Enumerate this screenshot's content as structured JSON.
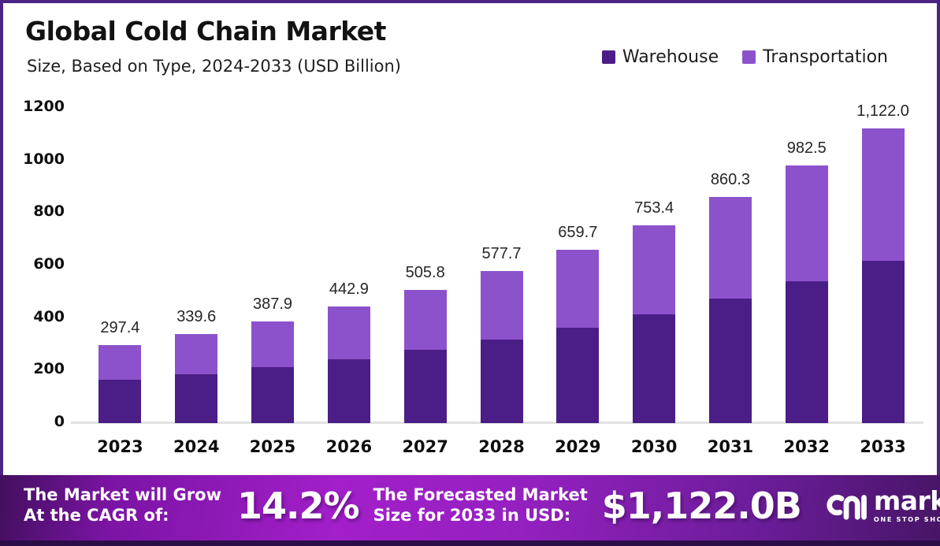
{
  "chart_data": {
    "type": "bar",
    "stacked": true,
    "title": "Global Cold Chain Market",
    "subtitle": "Size, Based on Type, 2024-2033 (USD Billion)",
    "categories": [
      "2023",
      "2024",
      "2025",
      "2026",
      "2027",
      "2028",
      "2029",
      "2030",
      "2031",
      "2032",
      "2033"
    ],
    "series": [
      {
        "name": "Warehouse",
        "color": "#4a1d87",
        "values": [
          163.6,
          186.8,
          213.3,
          243.6,
          278.2,
          317.7,
          362.8,
          414.4,
          473.2,
          540.4,
          617.1
        ]
      },
      {
        "name": "Transportation",
        "color": "#8c52cb",
        "values": [
          133.8,
          152.8,
          174.6,
          199.3,
          227.6,
          260.0,
          296.9,
          339.0,
          387.1,
          442.1,
          504.9
        ]
      }
    ],
    "totals": [
      297.4,
      339.6,
      387.9,
      442.9,
      505.8,
      577.7,
      659.7,
      753.4,
      860.3,
      982.5,
      1122.0
    ],
    "total_labels": [
      "297.4",
      "339.6",
      "387.9",
      "442.9",
      "505.8",
      "577.7",
      "659.7",
      "753.4",
      "860.3",
      "982.5",
      "1,122.0"
    ],
    "xlabel": "",
    "ylabel": "",
    "ylim": [
      0,
      1200
    ],
    "yticks": [
      0,
      200,
      400,
      600,
      800,
      1000,
      1200
    ],
    "grid": false,
    "legend_position": "top-right"
  },
  "footer": {
    "cagr_label_line1": "The Market will Grow",
    "cagr_label_line2": "At the CAGR of:",
    "cagr_value": "14.2%",
    "forecast_label_line1": "The Forecasted Market",
    "forecast_label_line2": "Size for 2033 in USD:",
    "forecast_value": "$1,122.0B",
    "brand": {
      "name": "market.us",
      "tagline": "ONE STOP SHOP FOR THE REPORTS"
    }
  }
}
